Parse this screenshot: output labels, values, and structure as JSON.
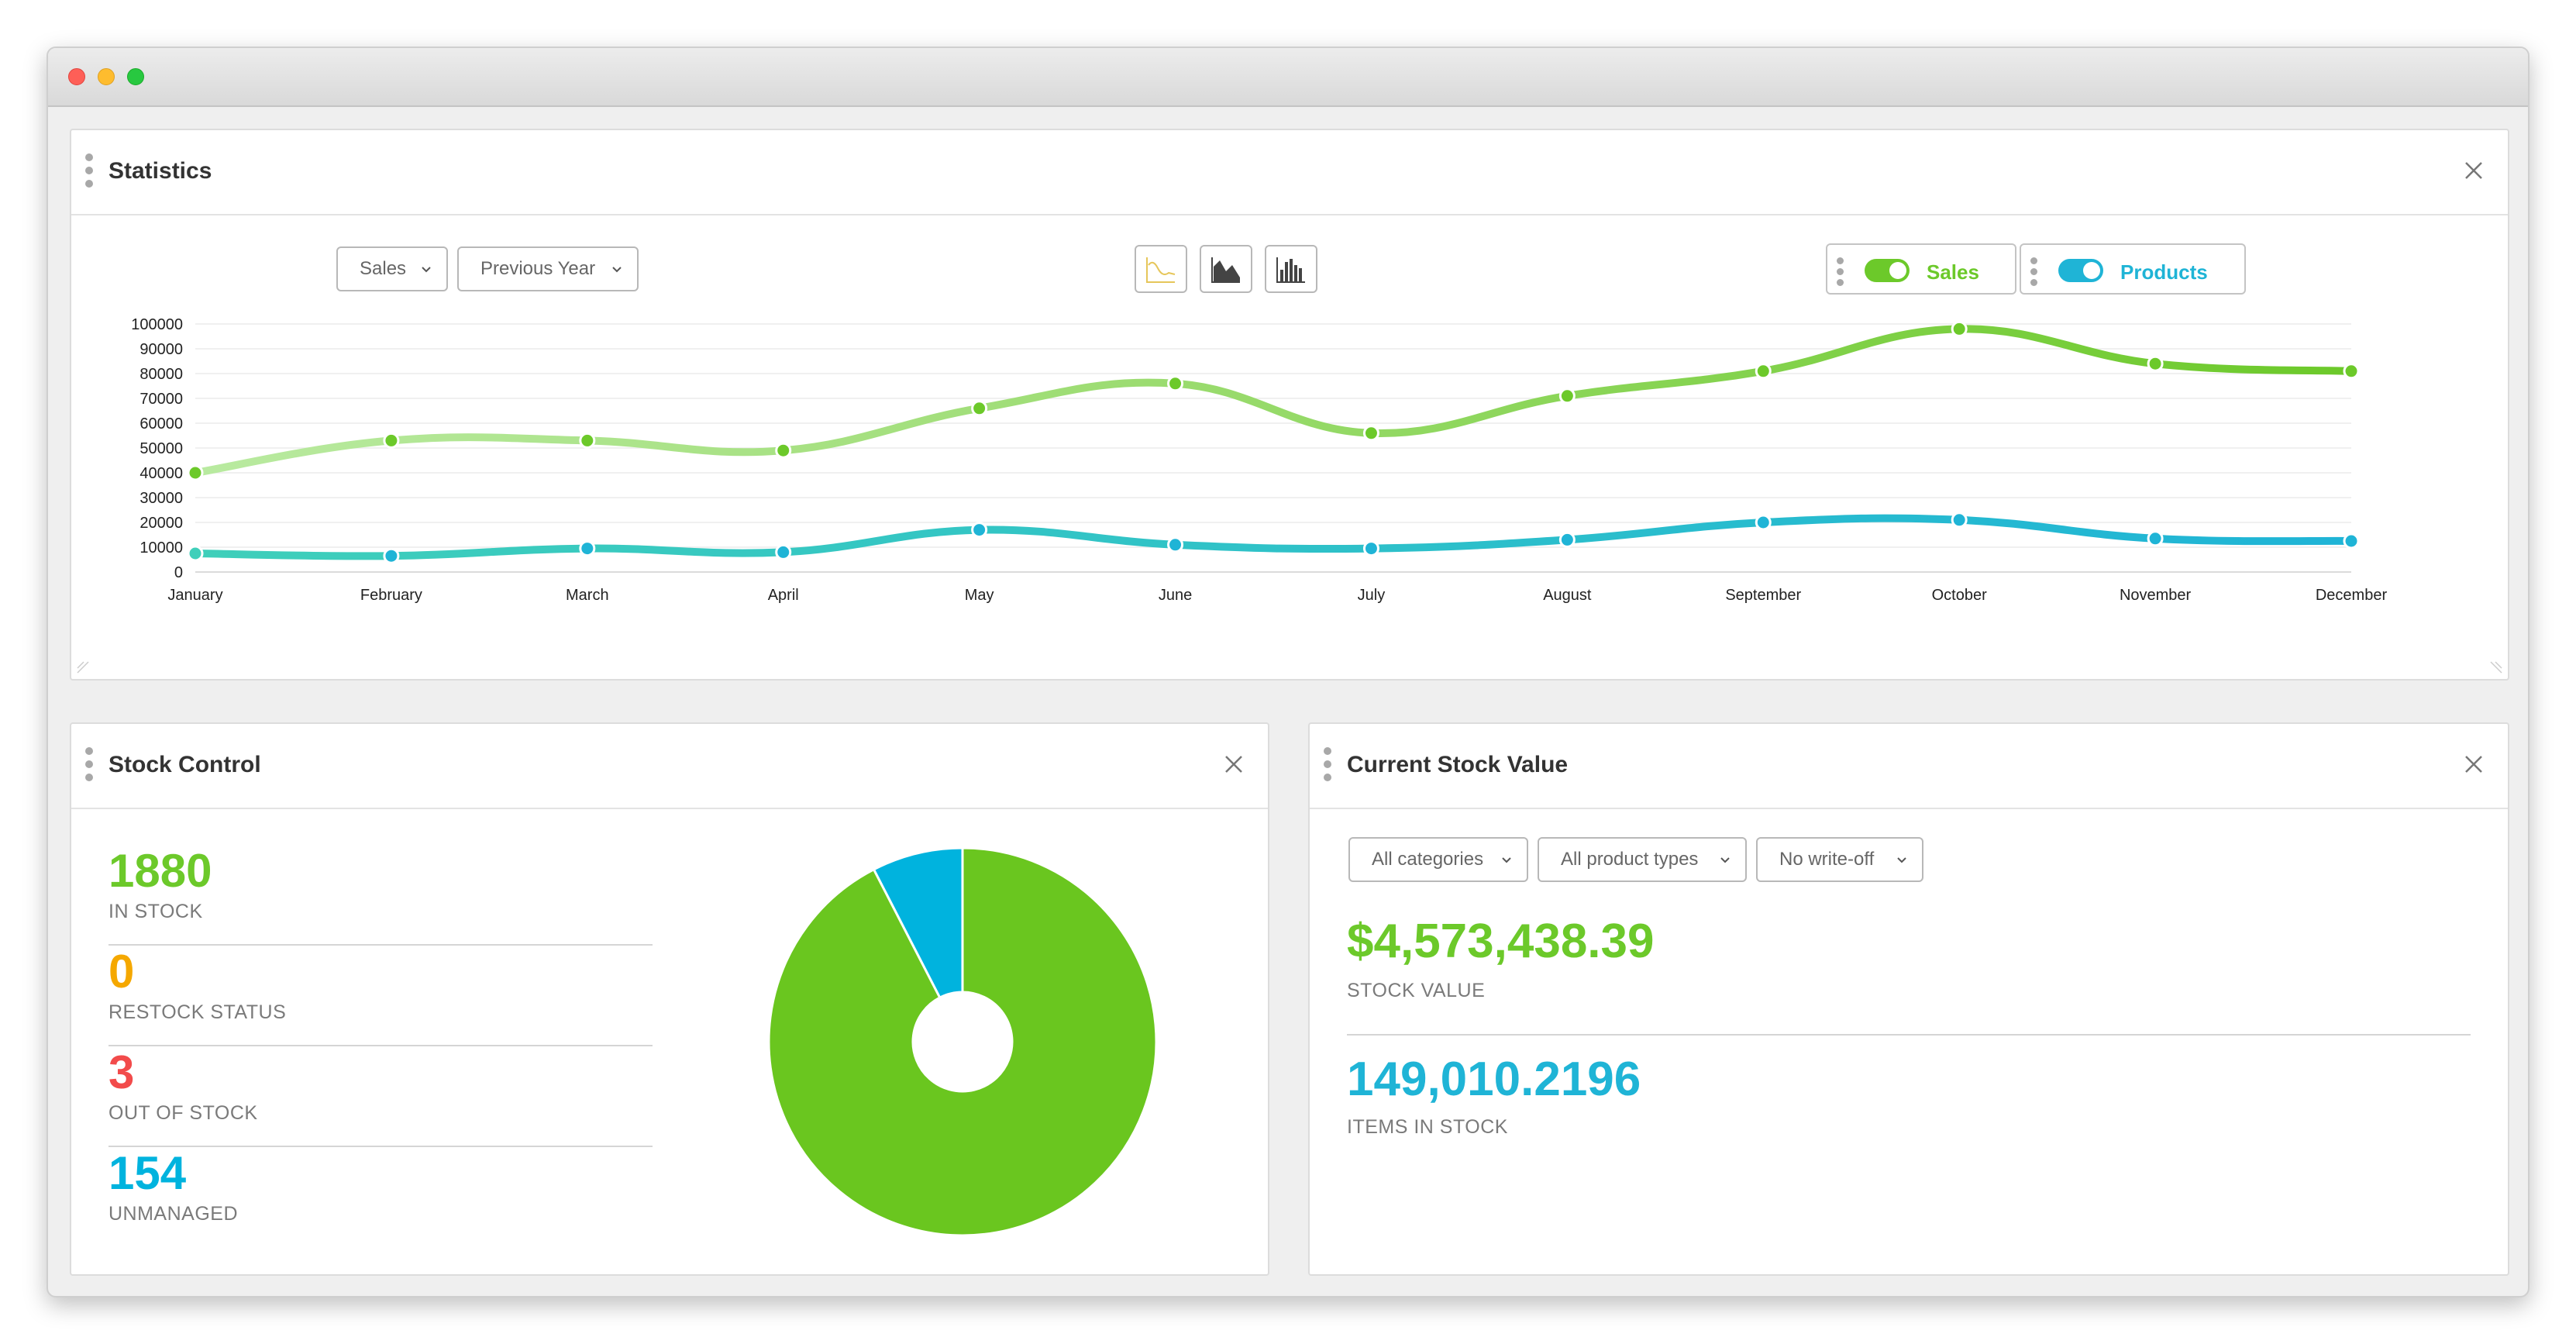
{
  "colors": {
    "sales_green": "#6cc92a",
    "sales_green_light": "#b9eaa0",
    "products_teal": "#1fb4d6",
    "products_teal_start": "#3fcfba",
    "restock_orange": "#f5a800",
    "out_of_stock_red": "#f24b4b",
    "pie_green": "#6ac61f",
    "pie_blue": "#00b3de"
  },
  "statistics": {
    "title": "Statistics",
    "metric_select": "Sales",
    "period_select": "Previous Year",
    "chart_types": [
      "line-chart-icon",
      "area-chart-icon",
      "bar-chart-icon"
    ],
    "toggles": [
      {
        "label": "Sales",
        "on": true
      },
      {
        "label": "Products",
        "on": true
      }
    ]
  },
  "chart_data": {
    "type": "line",
    "categories": [
      "January",
      "February",
      "March",
      "April",
      "May",
      "June",
      "July",
      "August",
      "September",
      "October",
      "November",
      "December"
    ],
    "ylim": [
      0,
      100000
    ],
    "yticks": [
      "0",
      "10000",
      "20000",
      "30000",
      "40000",
      "50000",
      "60000",
      "70000",
      "80000",
      "90000",
      "100000"
    ],
    "grid": true,
    "series": [
      {
        "name": "Sales",
        "values": [
          40000,
          53000,
          53000,
          49000,
          66000,
          76000,
          56000,
          71000,
          81000,
          98000,
          84000,
          81000
        ]
      },
      {
        "name": "Products",
        "values": [
          7500,
          6500,
          9500,
          8000,
          17000,
          11000,
          9500,
          13000,
          20000,
          21000,
          13500,
          12500
        ]
      }
    ]
  },
  "stock_control": {
    "title": "Stock Control",
    "metrics": [
      {
        "value": "1880",
        "label": "IN STOCK"
      },
      {
        "value": "0",
        "label": "RESTOCK STATUS"
      },
      {
        "value": "3",
        "label": "OUT OF STOCK"
      },
      {
        "value": "154",
        "label": "UNMANAGED"
      }
    ],
    "pie": {
      "in_stock": 1880,
      "unmanaged": 154
    }
  },
  "stock_value": {
    "title": "Current Stock Value",
    "filters": [
      "All categories",
      "All product types",
      "No write-off"
    ],
    "stock_value": "$4,573,438.39",
    "stock_value_label": "STOCK VALUE",
    "items_in_stock": "149,010.2196",
    "items_in_stock_label": "ITEMS IN STOCK"
  }
}
